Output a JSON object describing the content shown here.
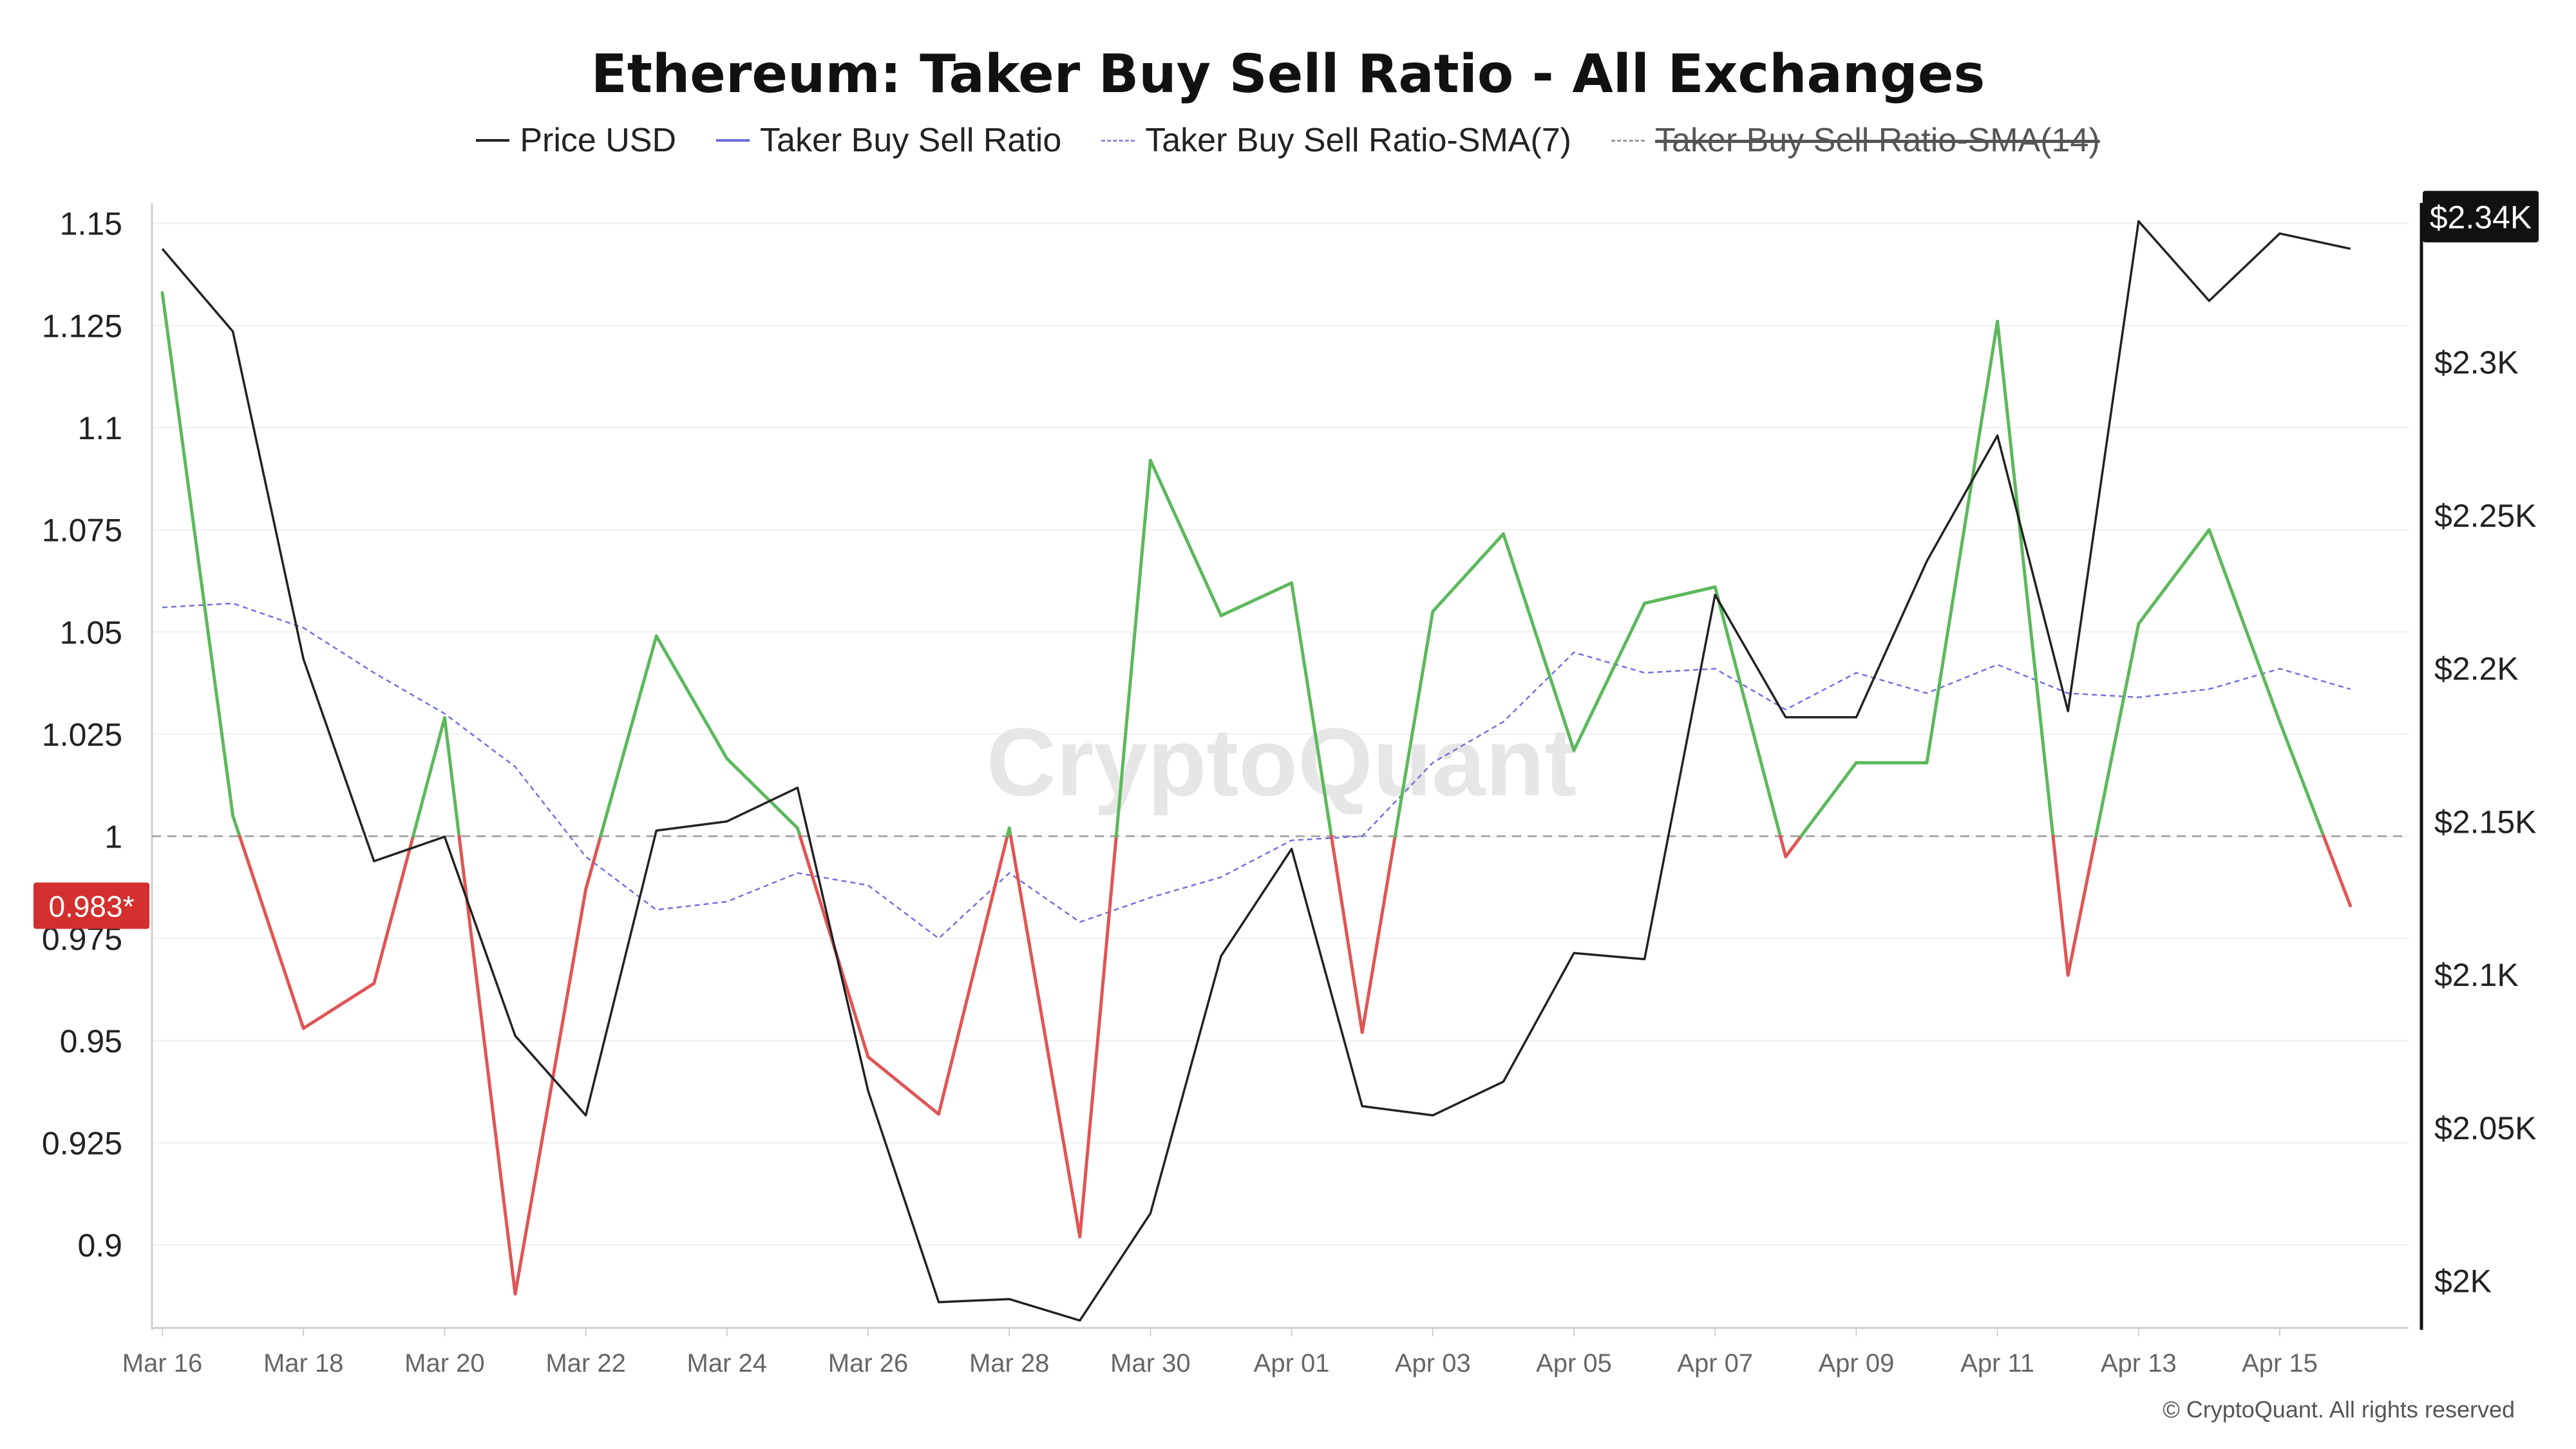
{
  "title": "Ethereum: Taker Buy Sell Ratio - All Exchanges",
  "legend": [
    {
      "label": "Price USD",
      "color": "#222222",
      "style": "solid",
      "enabled": true
    },
    {
      "label": "Taker Buy Sell Ratio",
      "color": "#6b6bd6",
      "style": "solid",
      "enabled": true
    },
    {
      "label": "Taker Buy Sell Ratio-SMA(7)",
      "color": "#8a8ae6",
      "style": "dashed",
      "enabled": true
    },
    {
      "label": "Taker Buy Sell Ratio-SMA(14)",
      "color": "#999999",
      "style": "dashed",
      "enabled": false
    }
  ],
  "watermark": "CryptoQuant",
  "copyright": "© CryptoQuant. All rights reserved",
  "colors": {
    "above": "#5cb85c",
    "below": "#e05555",
    "price": "#222222",
    "sma7": "#7070e0",
    "baseline": "#aaaaaa",
    "current_badge": "#d32f2f",
    "price_badge": "#111111"
  },
  "chart_data": {
    "type": "line",
    "x_labels": [
      "Mar 16",
      "Mar 18",
      "Mar 20",
      "Mar 22",
      "Mar 24",
      "Mar 26",
      "Mar 28",
      "Mar 30",
      "Apr 01",
      "Apr 03",
      "Apr 05",
      "Apr 07",
      "Apr 09",
      "Apr 11",
      "Apr 13",
      "Apr 15"
    ],
    "dates": [
      "Mar 16",
      "Mar 17",
      "Mar 18",
      "Mar 19",
      "Mar 20",
      "Mar 21",
      "Mar 22",
      "Mar 23",
      "Mar 24",
      "Mar 25",
      "Mar 26",
      "Mar 27",
      "Mar 28",
      "Mar 29",
      "Mar 30",
      "Mar 31",
      "Apr 01",
      "Apr 02",
      "Apr 03",
      "Apr 04",
      "Apr 05",
      "Apr 06",
      "Apr 07",
      "Apr 08",
      "Apr 09",
      "Apr 10",
      "Apr 11",
      "Apr 12",
      "Apr 13",
      "Apr 14",
      "Apr 15",
      "Apr 16"
    ],
    "left_axis": {
      "ticks": [
        "1.15",
        "1.125",
        "1.1",
        "1.075",
        "1.05",
        "1.025",
        "1",
        "0.975",
        "0.95",
        "0.925",
        "0.9"
      ],
      "range": [
        0.88,
        1.155
      ]
    },
    "right_axis": {
      "ticks": [
        "$2.3K",
        "$2.25K",
        "$2.2K",
        "$2.15K",
        "$2.1K",
        "$2.05K",
        "$2K"
      ],
      "range": [
        1985,
        2352
      ]
    },
    "baseline": 1,
    "current_ratio_label": "0.983*",
    "current_price_label": "$2.34K",
    "series": [
      {
        "name": "Taker Buy Sell Ratio",
        "axis": "left",
        "values": [
          1.133,
          1.005,
          0.953,
          0.964,
          1.029,
          0.888,
          0.987,
          1.049,
          1.019,
          1.002,
          0.946,
          0.932,
          1.002,
          0.902,
          1.092,
          1.054,
          1.062,
          0.952,
          1.055,
          1.074,
          1.021,
          1.057,
          1.061,
          0.995,
          1.018,
          1.018,
          1.126,
          0.966,
          1.052,
          1.075,
          1.028,
          0.983
        ]
      },
      {
        "name": "Taker Buy Sell Ratio-SMA(7)",
        "axis": "left",
        "values": [
          1.056,
          1.057,
          1.051,
          1.04,
          1.03,
          1.017,
          0.995,
          0.982,
          0.984,
          0.991,
          0.988,
          0.975,
          0.991,
          0.979,
          0.985,
          0.99,
          0.999,
          1.0,
          1.018,
          1.028,
          1.045,
          1.04,
          1.041,
          1.031,
          1.04,
          1.035,
          1.042,
          1.035,
          1.034,
          1.036,
          1.041,
          1.036
        ]
      },
      {
        "name": "Price USD",
        "axis": "right",
        "values": [
          2337,
          2310,
          2203,
          2137,
          2145,
          2080,
          2054,
          2147,
          2150,
          2161,
          2062,
          1993,
          1994,
          1987,
          2022,
          2106,
          2141,
          2057,
          2054,
          2065,
          2107,
          2105,
          2224,
          2184,
          2184,
          2235,
          2276,
          2186,
          2346,
          2320,
          2342,
          2337
        ]
      }
    ]
  }
}
